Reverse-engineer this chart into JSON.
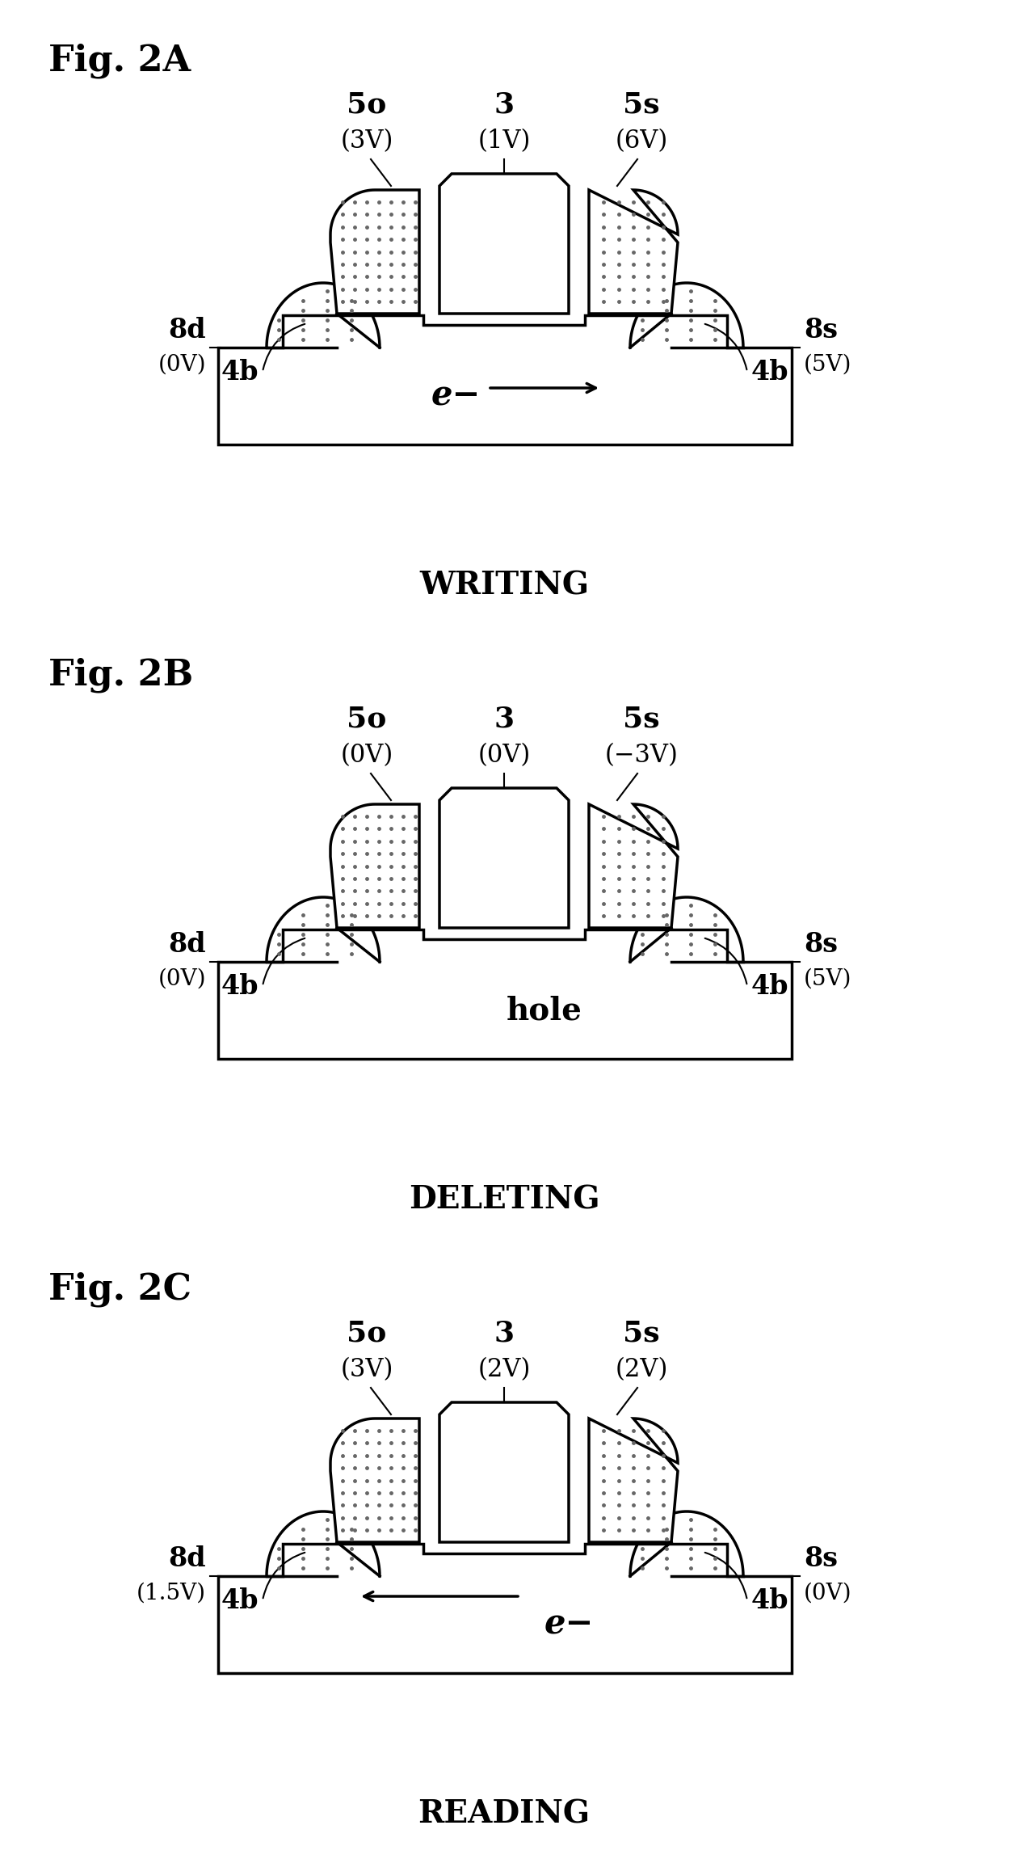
{
  "fig_title_A": "Fig. 2A",
  "fig_title_B": "Fig. 2B",
  "fig_title_C": "Fig. 2C",
  "label_A": "WRITING",
  "label_B": "DELETING",
  "label_C": "READING",
  "diagrams": [
    {
      "labels_top": [
        "5o",
        "3",
        "5s"
      ],
      "voltages_top": [
        "(3V)",
        "(1V)",
        "(6V)"
      ],
      "label_8d": "8d",
      "voltage_8d": "(0V)",
      "label_8s": "8s",
      "voltage_8s": "(5V)",
      "channel_text": "e−",
      "arrow_dir": "right",
      "arrow_in_channel": false
    },
    {
      "labels_top": [
        "5o",
        "3",
        "5s"
      ],
      "voltages_top": [
        "(0V)",
        "(0V)",
        "(−3V)"
      ],
      "label_8d": "8d",
      "voltage_8d": "(0V)",
      "label_8s": "8s",
      "voltage_8s": "(5V)",
      "channel_text": "hole",
      "arrow_dir": "none",
      "arrow_in_channel": false
    },
    {
      "labels_top": [
        "5o",
        "3",
        "5s"
      ],
      "voltages_top": [
        "(3V)",
        "(2V)",
        "(2V)"
      ],
      "label_8d": "8d",
      "voltage_8d": "(1.5V)",
      "label_8s": "8s",
      "voltage_8s": "(0V)",
      "channel_text": "e−",
      "arrow_dir": "left",
      "arrow_in_channel": true
    }
  ],
  "bg_color": "#ffffff",
  "line_color": "#000000"
}
